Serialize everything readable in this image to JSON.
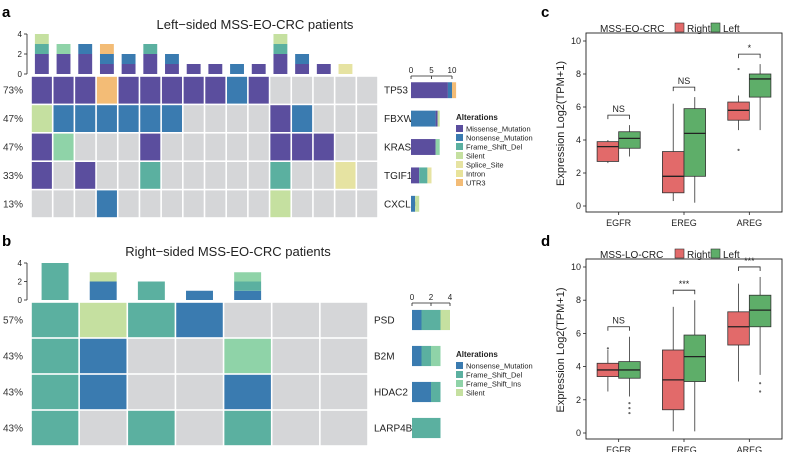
{
  "colors": {
    "Missense_Mutation": "#5b4e9e",
    "Nonsense_Mutation": "#3a7bb0",
    "Frame_Shift_Del": "#5bb0a0",
    "Frame_Shift_Ins": "#8fd3a8",
    "Silent": "#c5e0a0",
    "Splice_Site": "#e6e3a2",
    "Intron": "#e8e39a",
    "UTR3": "#f3bc76",
    "empty": "#d5d6d8",
    "box_right": "#e26a6a",
    "box_left": "#5eae69"
  },
  "panel_a": {
    "letter": "a",
    "title": "Left−sided MSS-EO-CRC patients",
    "genes": [
      "TP53",
      "FBXW7",
      "KRAS",
      "TGIF1",
      "CXCL9"
    ],
    "percents": [
      "73%",
      "47%",
      "47%",
      "33%",
      "13%"
    ],
    "top_axis_ticks": [
      "4",
      "2",
      "0"
    ],
    "side_axis_ticks": [
      "0",
      "5",
      "10"
    ],
    "matrix": [
      [
        "Missense_Mutation",
        "Missense_Mutation",
        "Missense_Mutation",
        "UTR3",
        "Missense_Mutation",
        "Missense_Mutation",
        "Missense_Mutation",
        "Missense_Mutation",
        "Missense_Mutation",
        "Nonsense_Mutation",
        "Missense_Mutation",
        "",
        "",
        "",
        "",
        ""
      ],
      [
        "Silent",
        "Nonsense_Mutation",
        "Nonsense_Mutation",
        "Nonsense_Mutation",
        "Nonsense_Mutation",
        "Nonsense_Mutation",
        "Nonsense_Mutation",
        "",
        "",
        "",
        "",
        "Missense_Mutation",
        "Nonsense_Mutation",
        "",
        "",
        ""
      ],
      [
        "Missense_Mutation",
        "Frame_Shift_Ins",
        "",
        "",
        "",
        "Missense_Mutation",
        "",
        "",
        "",
        "",
        "",
        "Missense_Mutation",
        "Missense_Mutation",
        "Missense_Mutation",
        "",
        ""
      ],
      [
        "Missense_Mutation",
        "",
        "Missense_Mutation",
        "",
        "",
        "Frame_Shift_Del",
        "",
        "",
        "",
        "",
        "",
        "Frame_Shift_Del",
        "",
        "",
        "Splice_Site",
        ""
      ],
      [
        "",
        "",
        "",
        "Nonsense_Mutation",
        "",
        "",
        "",
        "",
        "",
        "",
        "",
        "Silent",
        "",
        "",
        "",
        ""
      ]
    ],
    "top_bars": [
      [
        {
          "type": "Missense_Mutation",
          "count": 2
        },
        {
          "type": "Frame_Shift_Del",
          "count": 1
        },
        {
          "type": "Silent",
          "count": 1
        }
      ],
      [
        {
          "type": "Missense_Mutation",
          "count": 2
        },
        {
          "type": "Frame_Shift_Ins",
          "count": 1
        }
      ],
      [
        {
          "type": "Missense_Mutation",
          "count": 2
        },
        {
          "type": "Nonsense_Mutation",
          "count": 1
        }
      ],
      [
        {
          "type": "Missense_Mutation",
          "count": 1
        },
        {
          "type": "Nonsense_Mutation",
          "count": 1
        },
        {
          "type": "UTR3",
          "count": 1
        }
      ],
      [
        {
          "type": "Missense_Mutation",
          "count": 1
        },
        {
          "type": "Nonsense_Mutation",
          "count": 1
        }
      ],
      [
        {
          "type": "Missense_Mutation",
          "count": 2
        },
        {
          "type": "Frame_Shift_Del",
          "count": 1
        }
      ],
      [
        {
          "type": "Missense_Mutation",
          "count": 1
        },
        {
          "type": "Nonsense_Mutation",
          "count": 1
        }
      ],
      [
        {
          "type": "Missense_Mutation",
          "count": 1
        }
      ],
      [
        {
          "type": "Missense_Mutation",
          "count": 1
        }
      ],
      [
        {
          "type": "Nonsense_Mutation",
          "count": 1
        }
      ],
      [
        {
          "type": "Missense_Mutation",
          "count": 1
        }
      ],
      [
        {
          "type": "Missense_Mutation",
          "count": 2
        },
        {
          "type": "Frame_Shift_Del",
          "count": 1
        },
        {
          "type": "Silent",
          "count": 1
        }
      ],
      [
        {
          "type": "Missense_Mutation",
          "count": 1
        },
        {
          "type": "Nonsense_Mutation",
          "count": 1
        }
      ],
      [
        {
          "type": "Missense_Mutation",
          "count": 1
        }
      ],
      [
        {
          "type": "Splice_Site",
          "count": 1
        }
      ],
      []
    ],
    "side_bars": [
      [
        {
          "type": "Missense_Mutation",
          "count": 9
        },
        {
          "type": "Nonsense_Mutation",
          "count": 1
        },
        {
          "type": "UTR3",
          "count": 1
        }
      ],
      [
        {
          "type": "Nonsense_Mutation",
          "count": 6
        },
        {
          "type": "Missense_Mutation",
          "count": 0.5
        },
        {
          "type": "Silent",
          "count": 0.5
        }
      ],
      [
        {
          "type": "Missense_Mutation",
          "count": 6
        },
        {
          "type": "Frame_Shift_Ins",
          "count": 1
        }
      ],
      [
        {
          "type": "Missense_Mutation",
          "count": 2
        },
        {
          "type": "Frame_Shift_Del",
          "count": 2
        },
        {
          "type": "Splice_Site",
          "count": 1
        }
      ],
      [
        {
          "type": "Nonsense_Mutation",
          "count": 1
        },
        {
          "type": "Silent",
          "count": 1
        }
      ]
    ],
    "legend_title": "Alterations",
    "legend": [
      "Missense_Mutation",
      "Nonsense_Mutation",
      "Frame_Shift_Del",
      "Silent",
      "Splice_Site",
      "Intron",
      "UTR3"
    ]
  },
  "panel_b": {
    "letter": "b",
    "title": "Right−sided MSS-EO-CRC patients",
    "genes": [
      "PSD",
      "B2M",
      "HDAC2",
      "LARP4B"
    ],
    "percents": [
      "57%",
      "43%",
      "43%",
      "43%"
    ],
    "top_axis_ticks": [
      "4",
      "2",
      "0"
    ],
    "side_axis_ticks": [
      "0",
      "2",
      "4"
    ],
    "matrix": [
      [
        "Frame_Shift_Del",
        "Silent",
        "Frame_Shift_Del",
        "Nonsense_Mutation",
        "",
        "",
        ""
      ],
      [
        "Frame_Shift_Del",
        "Nonsense_Mutation",
        "",
        "",
        "Frame_Shift_Ins",
        "",
        ""
      ],
      [
        "Frame_Shift_Del",
        "Nonsense_Mutation",
        "",
        "",
        "Nonsense_Mutation",
        "",
        ""
      ],
      [
        "Frame_Shift_Del",
        "",
        "Frame_Shift_Del",
        "",
        "Frame_Shift_Del",
        "",
        ""
      ]
    ],
    "top_bars": [
      [
        {
          "type": "Frame_Shift_Del",
          "count": 4
        }
      ],
      [
        {
          "type": "Nonsense_Mutation",
          "count": 2
        },
        {
          "type": "Silent",
          "count": 1
        }
      ],
      [
        {
          "type": "Frame_Shift_Del",
          "count": 2
        }
      ],
      [
        {
          "type": "Nonsense_Mutation",
          "count": 1
        }
      ],
      [
        {
          "type": "Nonsense_Mutation",
          "count": 1
        },
        {
          "type": "Frame_Shift_Del",
          "count": 1
        },
        {
          "type": "Frame_Shift_Ins",
          "count": 1
        }
      ],
      [],
      []
    ],
    "side_bars": [
      [
        {
          "type": "Nonsense_Mutation",
          "count": 1
        },
        {
          "type": "Frame_Shift_Del",
          "count": 2
        },
        {
          "type": "Silent",
          "count": 1
        }
      ],
      [
        {
          "type": "Nonsense_Mutation",
          "count": 1
        },
        {
          "type": "Frame_Shift_Del",
          "count": 1
        },
        {
          "type": "Frame_Shift_Ins",
          "count": 1
        }
      ],
      [
        {
          "type": "Nonsense_Mutation",
          "count": 2
        },
        {
          "type": "Frame_Shift_Del",
          "count": 1
        }
      ],
      [
        {
          "type": "Frame_Shift_Del",
          "count": 3
        }
      ]
    ],
    "legend_title": "Alterations",
    "legend": [
      "Nonsense_Mutation",
      "Frame_Shift_Del",
      "Frame_Shift_Ins",
      "Silent"
    ]
  },
  "chart_data": [
    {
      "type": "boxplot",
      "panel": "c",
      "title": "MSS-EO-CRC",
      "legend": [
        "Right",
        "Left"
      ],
      "ylabel": "Expression Log2(TPM+1)",
      "ylim": [
        0,
        10
      ],
      "yticks": [
        0,
        2,
        4,
        6,
        8,
        10
      ],
      "categories": [
        "EGFR",
        "EREG",
        "AREG"
      ],
      "significance": [
        "NS",
        "NS",
        "*"
      ],
      "series": [
        {
          "name": "Right",
          "boxes": [
            {
              "min": 2.6,
              "q1": 2.7,
              "median": 3.6,
              "q3": 3.9,
              "max": 4.0,
              "outliers": []
            },
            {
              "min": 0.3,
              "q1": 0.8,
              "median": 1.8,
              "q3": 3.3,
              "max": 6.2,
              "outliers": []
            },
            {
              "min": 4.6,
              "q1": 5.2,
              "median": 5.8,
              "q3": 6.3,
              "max": 6.7,
              "outliers": [
                8.3,
                3.4
              ]
            }
          ]
        },
        {
          "name": "Left",
          "boxes": [
            {
              "min": 3.0,
              "q1": 3.5,
              "median": 4.1,
              "q3": 4.5,
              "max": 4.9,
              "outliers": []
            },
            {
              "min": 0.2,
              "q1": 1.8,
              "median": 4.4,
              "q3": 5.9,
              "max": 6.6,
              "outliers": []
            },
            {
              "min": 4.6,
              "q1": 6.6,
              "median": 7.7,
              "q3": 8.0,
              "max": 8.6,
              "outliers": []
            }
          ]
        }
      ]
    },
    {
      "type": "boxplot",
      "panel": "d",
      "title": "MSS-LO-CRC",
      "legend": [
        "Right",
        "Left"
      ],
      "ylabel": "Expression Log2(TPM+1)",
      "ylim": [
        0,
        10
      ],
      "yticks": [
        0,
        2,
        4,
        6,
        8,
        10
      ],
      "categories": [
        "EGFR",
        "EREG",
        "AREG"
      ],
      "significance": [
        "NS",
        "***",
        "***"
      ],
      "series": [
        {
          "name": "Right",
          "boxes": [
            {
              "min": 2.5,
              "q1": 3.4,
              "median": 3.8,
              "q3": 4.2,
              "max": 5.0,
              "outliers": [
                5.1
              ]
            },
            {
              "min": 0.1,
              "q1": 1.4,
              "median": 3.2,
              "q3": 5.0,
              "max": 7.6,
              "outliers": []
            },
            {
              "min": 3.1,
              "q1": 5.3,
              "median": 6.4,
              "q3": 7.3,
              "max": 9.0,
              "outliers": []
            }
          ]
        },
        {
          "name": "Left",
          "boxes": [
            {
              "min": 2.2,
              "q1": 3.3,
              "median": 3.8,
              "q3": 4.3,
              "max": 5.8,
              "outliers": [
                1.5,
                1.2,
                1.8
              ]
            },
            {
              "min": 0.1,
              "q1": 3.1,
              "median": 4.6,
              "q3": 5.9,
              "max": 8.0,
              "outliers": []
            },
            {
              "min": 3.5,
              "q1": 6.4,
              "median": 7.4,
              "q3": 8.3,
              "max": 9.4,
              "outliers": [
                2.5,
                3.0
              ]
            }
          ]
        }
      ]
    }
  ]
}
